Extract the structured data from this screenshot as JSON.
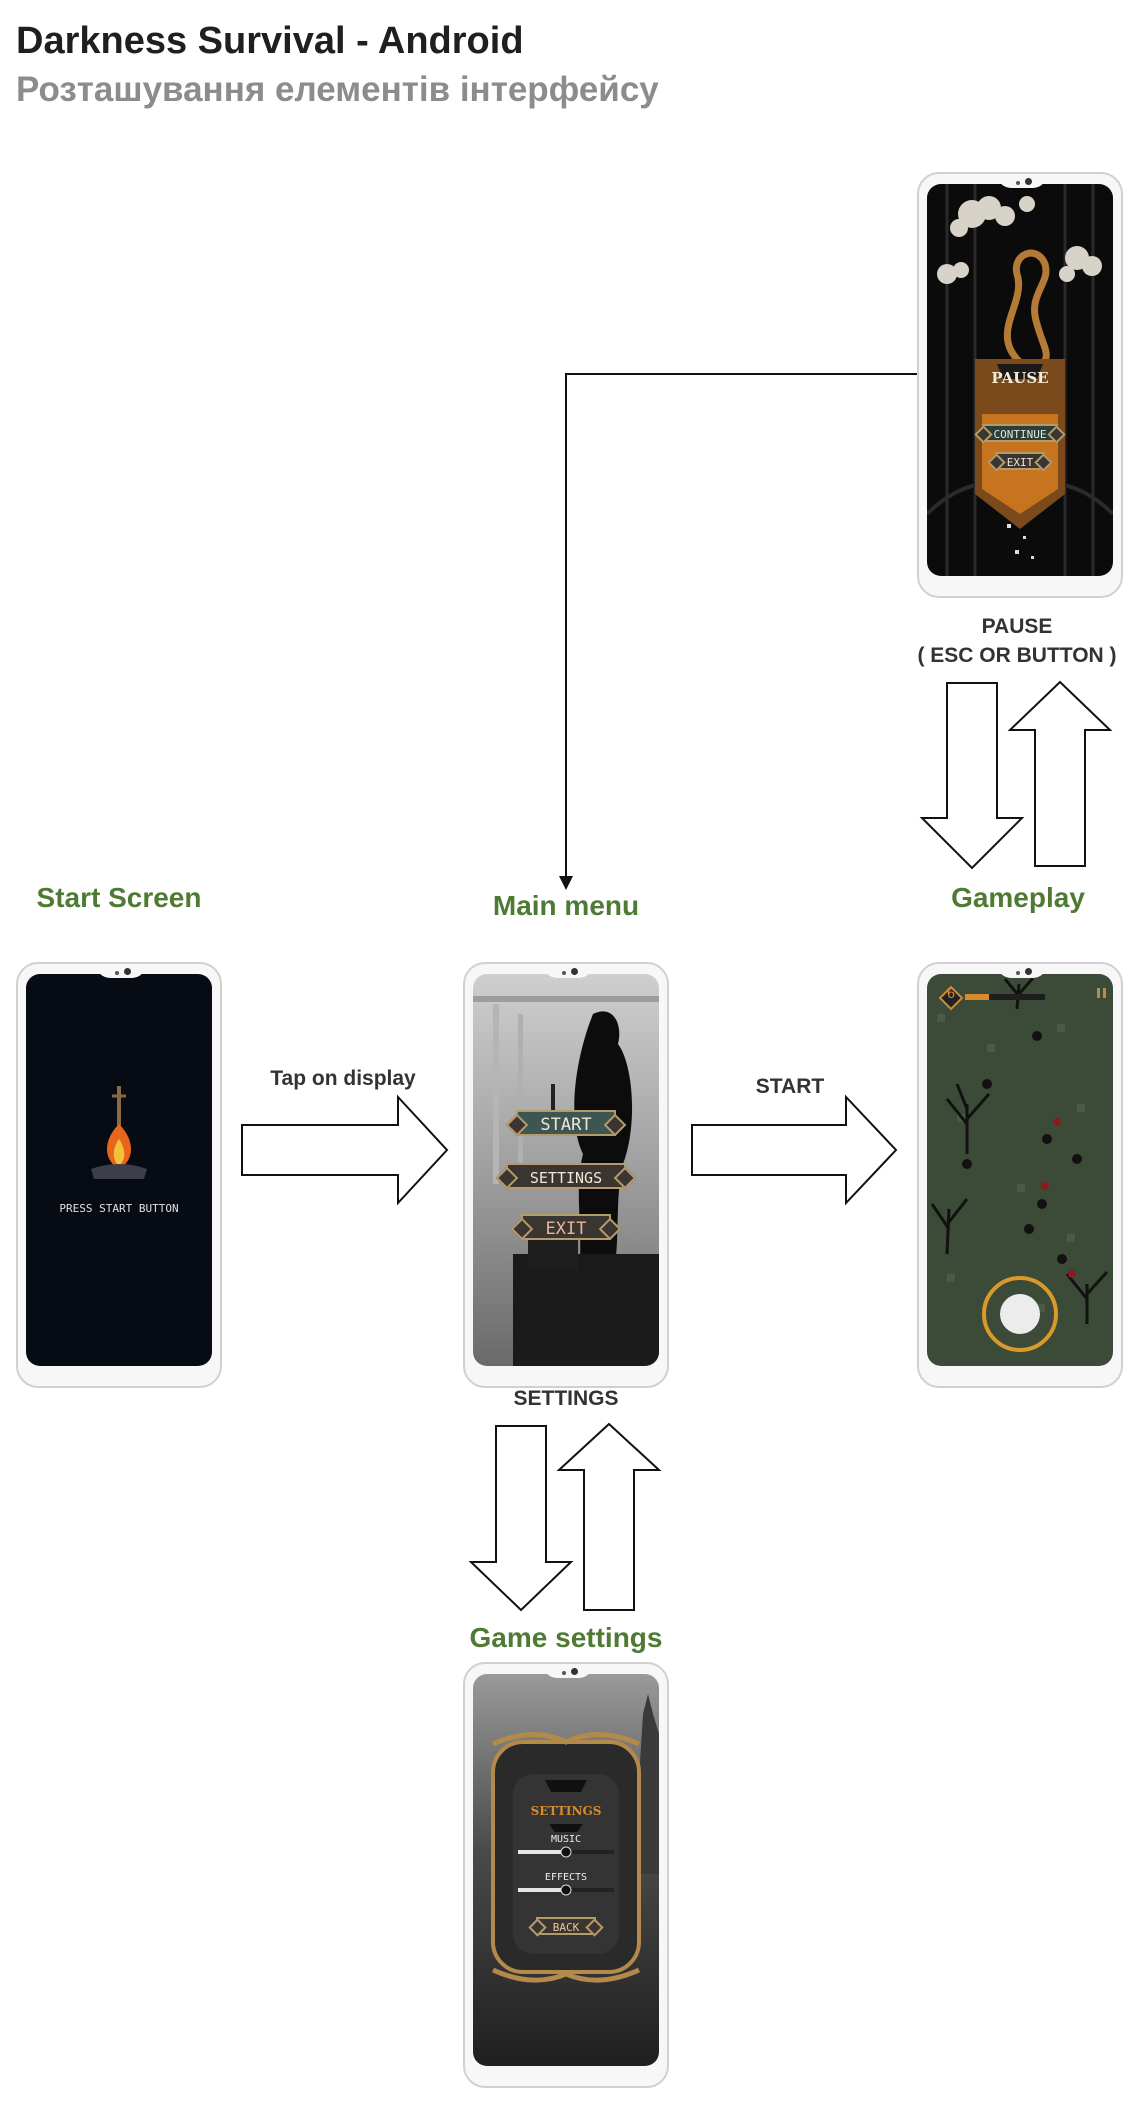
{
  "header": {
    "title": "Darkness Survival - Android",
    "subtitle": "Розташування елементів інтерфейсу"
  },
  "screens": {
    "start": {
      "label": "Start Screen",
      "prompt": "PRESS START BUTTON"
    },
    "main_menu": {
      "label": "Main menu",
      "buttons": [
        "START",
        "SETTINGS",
        "EXIT"
      ]
    },
    "gameplay": {
      "label": "Gameplay",
      "level": "6"
    },
    "pause": {
      "title": "PAUSE",
      "buttons": [
        "CONTINUE",
        "EXIT"
      ]
    },
    "settings": {
      "label": "Game settings",
      "title": "SETTINGS",
      "music_label": "MUSIC",
      "effects_label": "EFFECTS",
      "back_label": "BACK",
      "music_level": 0.5,
      "effects_level": 0.5
    }
  },
  "flows": {
    "tap": "Tap on display",
    "start": "START",
    "pause_line1": "PAUSE",
    "pause_line2": "( ESC OR BUTTON )",
    "settings": "SETTINGS"
  },
  "colors": {
    "screen_label": "#4e7a33",
    "title": "#1f1f1f",
    "subtitle": "#8c8c8c",
    "accent_orange": "#d98a2b",
    "gameplay_bg": "#3c4a38"
  }
}
